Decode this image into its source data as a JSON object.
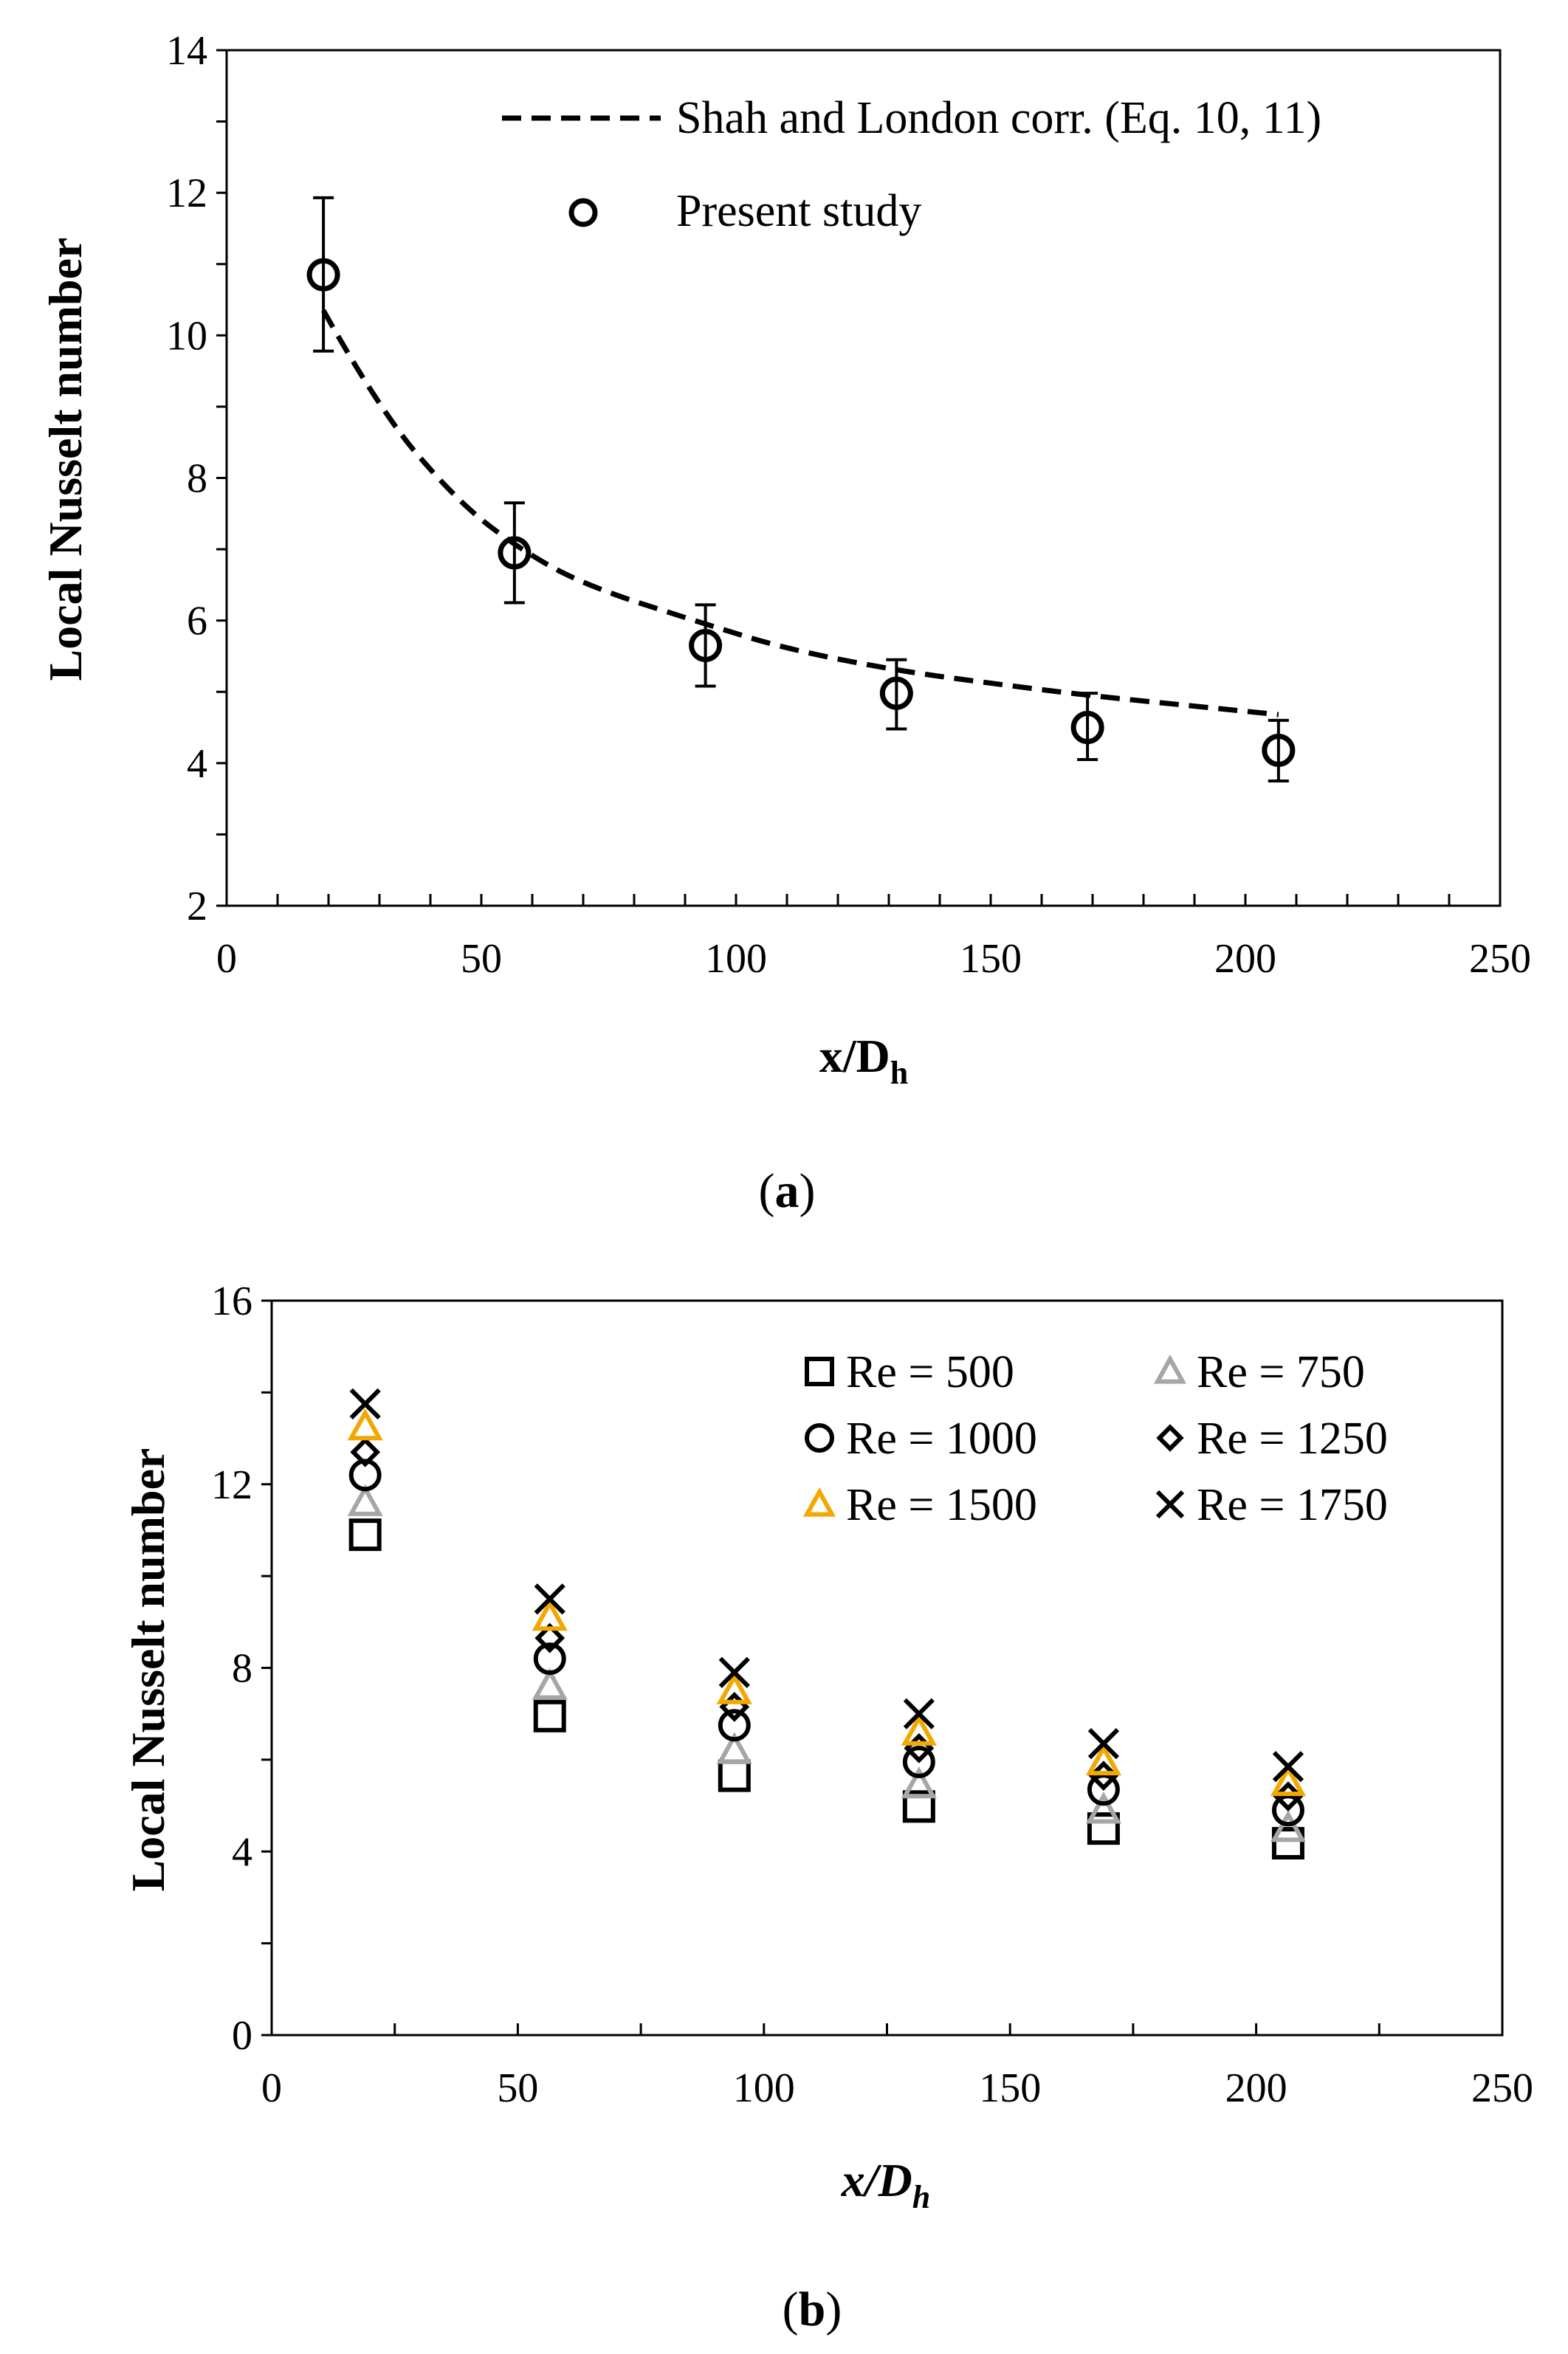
{
  "chart_data": [
    {
      "panel": "a",
      "type": "scatter",
      "caption_letter": "a",
      "xlabel_main": "x/D",
      "xlabel_sub": "h",
      "ylabel": "Local Nusselt number",
      "xlim": [
        0,
        250
      ],
      "ylim": [
        2,
        14
      ],
      "xticks": [
        0,
        50,
        100,
        150,
        200,
        250
      ],
      "yticks": [
        2,
        4,
        6,
        8,
        10,
        12,
        14
      ],
      "legend": {
        "line_label": "Shah and London corr. (Eq. 10, 11)",
        "marker_label": "Present study",
        "position": "top-right"
      },
      "points": {
        "name": "Present study",
        "marker": "circle",
        "x": [
          19,
          56.5,
          94,
          131.5,
          169,
          206.5
        ],
        "y": [
          10.85,
          6.95,
          5.65,
          4.98,
          4.5,
          4.18
        ],
        "yerr_low": [
          9.78,
          6.25,
          5.08,
          4.48,
          4.05,
          3.75
        ],
        "yerr_high": [
          11.93,
          7.65,
          6.22,
          5.45,
          4.98,
          4.6
        ]
      },
      "correlation": {
        "name": "Shah and London corr. (Eq. 10, 11)",
        "style": "dashed",
        "x": [
          19,
          30,
          45,
          56.5,
          70,
          94,
          110,
          131.5,
          150,
          169,
          190,
          206.5
        ],
        "y": [
          10.35,
          8.95,
          7.7,
          7.05,
          6.5,
          5.95,
          5.6,
          5.3,
          5.12,
          4.95,
          4.8,
          4.68
        ]
      }
    },
    {
      "panel": "b",
      "type": "scatter",
      "caption_letter": "b",
      "xlabel_main": "x/D",
      "xlabel_sub": "h",
      "ylabel": "Local Nusselt number",
      "xlim": [
        0,
        250
      ],
      "ylim": [
        0,
        16
      ],
      "xticks": [
        0,
        50,
        100,
        150,
        200,
        250
      ],
      "yticks": [
        0,
        4,
        8,
        12,
        16
      ],
      "x": [
        19,
        56.5,
        94,
        131.5,
        169,
        206.5
      ],
      "series": [
        {
          "name": "Re = 500",
          "marker": "square",
          "color": "#000000",
          "values": [
            10.9,
            6.95,
            5.65,
            4.98,
            4.5,
            4.18
          ]
        },
        {
          "name": "Re = 750",
          "marker": "triangle",
          "color": "#a6a6a6",
          "values": [
            11.6,
            7.6,
            6.2,
            5.45,
            4.9,
            4.5
          ]
        },
        {
          "name": "Re = 1000",
          "marker": "circle",
          "color": "#000000",
          "values": [
            12.2,
            8.2,
            6.75,
            5.95,
            5.35,
            4.9
          ]
        },
        {
          "name": "Re = 1250",
          "marker": "diamond",
          "color": "#000000",
          "values": [
            12.7,
            8.65,
            7.15,
            6.25,
            5.65,
            5.2
          ]
        },
        {
          "name": "Re = 1500",
          "marker": "triangle",
          "color": "#f2a800",
          "values": [
            13.25,
            9.1,
            7.5,
            6.6,
            5.95,
            5.5
          ]
        },
        {
          "name": "Re = 1750",
          "marker": "cross",
          "color": "#000000",
          "values": [
            13.75,
            9.5,
            7.9,
            7.0,
            6.35,
            5.85
          ]
        }
      ],
      "legend": {
        "position": "top-right"
      }
    }
  ]
}
